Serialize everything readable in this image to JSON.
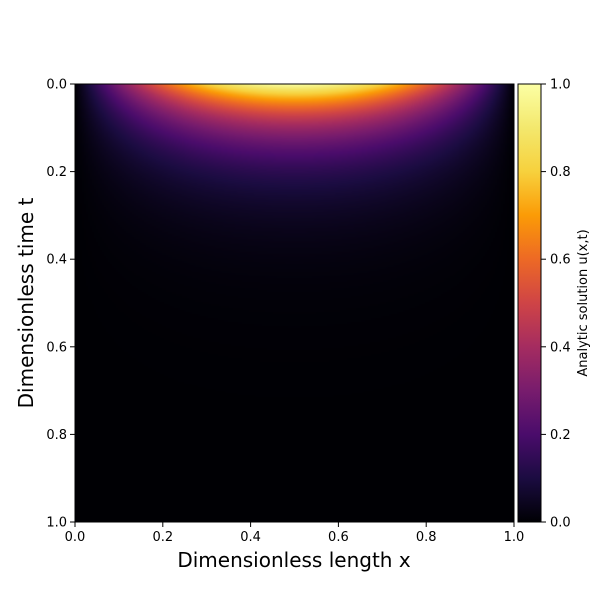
{
  "chart_data": {
    "type": "heatmap",
    "title": "",
    "xlabel": "Dimensionless length x",
    "ylabel": "Dimensionless time t",
    "xlim": [
      0.0,
      1.0
    ],
    "ylim": [
      0.0,
      1.0
    ],
    "y_inverted": true,
    "x_ticks": [
      "0.0",
      "0.2",
      "0.4",
      "0.6",
      "0.8",
      "1.0"
    ],
    "y_ticks": [
      "0.0",
      "0.2",
      "0.4",
      "0.6",
      "0.8",
      "1.0"
    ],
    "colormap": "inferno",
    "colorbar": {
      "label": "Analytic solution u(x,t)",
      "range": [
        0.0,
        1.0
      ],
      "ticks": [
        "0.0",
        "0.2",
        "0.4",
        "0.6",
        "0.8",
        "1.0"
      ]
    },
    "grid": false,
    "sampled_values": [
      {
        "x": 0.5,
        "t": 0.0,
        "u": 1.0
      },
      {
        "x": 0.3,
        "t": 0.0,
        "u": 0.81
      },
      {
        "x": 0.5,
        "t": 0.1,
        "u": 0.37
      },
      {
        "x": 0.5,
        "t": 0.2,
        "u": 0.14
      },
      {
        "x": 0.5,
        "t": 0.4,
        "u": 0.02
      },
      {
        "x": 0.0,
        "t": 0.0,
        "u": 0.0
      },
      {
        "x": 1.0,
        "t": 0.0,
        "u": 0.0
      }
    ]
  }
}
